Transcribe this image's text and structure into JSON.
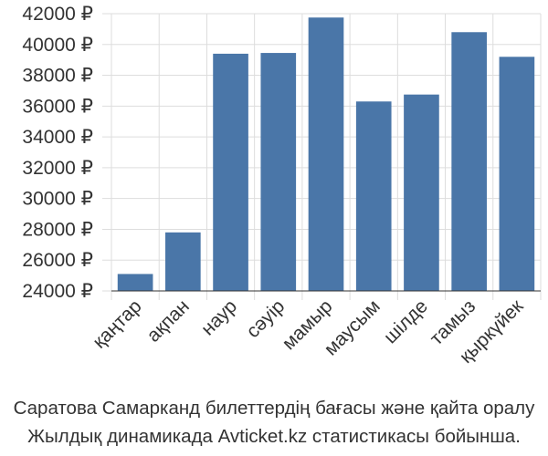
{
  "chart_data": {
    "type": "bar",
    "categories": [
      "қаңтар",
      "ақпан",
      "наур",
      "сәуір",
      "мамыр",
      "маусым",
      "шілде",
      "тамыз",
      "қыркүйек"
    ],
    "values": [
      25100,
      27800,
      39400,
      39450,
      41750,
      36300,
      36750,
      40800,
      39200
    ],
    "ylim": [
      24000,
      42000
    ],
    "yticks": [
      24000,
      26000,
      28000,
      30000,
      32000,
      34000,
      36000,
      38000,
      40000,
      42000
    ],
    "ytick_labels": [
      "24000 ₽",
      "26000 ₽",
      "28000 ₽",
      "30000 ₽",
      "32000 ₽",
      "34000 ₽",
      "36000 ₽",
      "38000 ₽",
      "40000 ₽",
      "42000 ₽"
    ],
    "bar_color": "#4a76a8",
    "grid": true
  },
  "caption": {
    "line1": "Саратова Самарканд билеттердің бағасы және қайта оралу",
    "line2": "Жылдық динамикада Avticket.kz статистикасы бойынша."
  }
}
